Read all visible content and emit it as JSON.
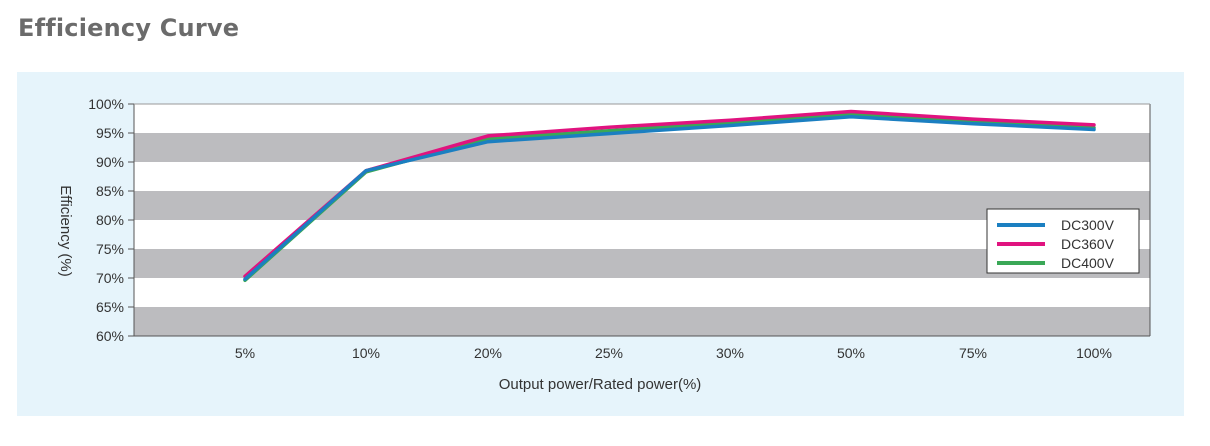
{
  "page": {
    "heading": "Efficiency Curve"
  },
  "chart_data": {
    "type": "line",
    "title": "",
    "categories": [
      "5%",
      "10%",
      "20%",
      "25%",
      "30%",
      "50%",
      "75%",
      "100%"
    ],
    "xlabel": "Output power/Rated power(%)",
    "ylabel": "Efficiency (%)",
    "ylim": [
      60,
      100
    ],
    "yticks": [
      "60%",
      "65%",
      "70%",
      "75%",
      "80%",
      "85%",
      "90%",
      "95%",
      "100%"
    ],
    "grid": "alternating horizontal gray bands",
    "legend_position": "right",
    "series": [
      {
        "name": "DC300V",
        "color": "#1b7fc1",
        "values": [
          69.8,
          88.5,
          93.5,
          94.9,
          96.3,
          97.8,
          96.6,
          95.6
        ]
      },
      {
        "name": "DC360V",
        "color": "#e0137f",
        "values": [
          70.3,
          88.5,
          94.5,
          96.0,
          97.2,
          98.7,
          97.4,
          96.4
        ]
      },
      {
        "name": "DC400V",
        "color": "#3aa857",
        "values": [
          69.6,
          88.3,
          94.0,
          95.4,
          96.8,
          98.2,
          97.0,
          95.9
        ]
      }
    ]
  }
}
